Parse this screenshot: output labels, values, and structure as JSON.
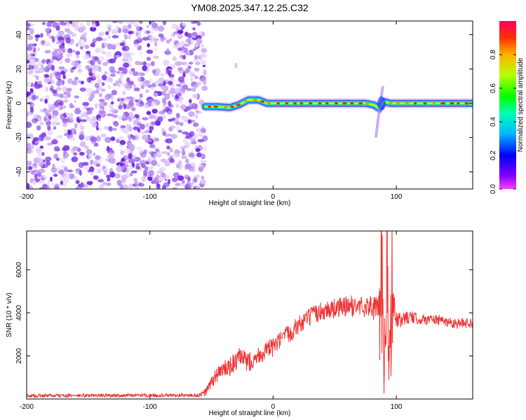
{
  "title": "YM08.2025.347.12.25.C32",
  "chart_data": [
    {
      "type": "heatmap",
      "title": "YM08.2025.347.12.25.C32",
      "xlabel": "Height of straight line (km)",
      "ylabel": "Frequency (Hz)",
      "xlim": [
        -200,
        162
      ],
      "ylim": [
        -50,
        48
      ],
      "xticks": [
        -200,
        -100,
        0,
        100
      ],
      "yticks": [
        -40,
        -20,
        0,
        20,
        40
      ],
      "noise_region_x": [
        -200,
        -55
      ],
      "signal_track": {
        "x": [
          -55,
          -45,
          -35,
          -28,
          -20,
          -12,
          -5,
          0,
          20,
          40,
          60,
          75,
          82,
          86,
          90,
          95,
          110,
          130,
          150,
          162
        ],
        "freq_hz": [
          -2,
          -2,
          -2.5,
          -1,
          2,
          2,
          0,
          0,
          0,
          0,
          0,
          0,
          -1,
          -3,
          1,
          0,
          0,
          0,
          0,
          0
        ]
      },
      "disturbance_x": 88,
      "colorbar": {
        "label": "Normalized spectral amplitude",
        "range": [
          0.0,
          1.0
        ],
        "ticks": [
          "0.0",
          "0.2",
          "0.4",
          "0.6",
          "0.8"
        ]
      }
    },
    {
      "type": "line",
      "xlabel": "Height of straight line (km)",
      "ylabel": "SNR (10 * v/v)",
      "xlim": [
        -200,
        162
      ],
      "ylim": [
        0,
        7800
      ],
      "xticks": [
        -200,
        -100,
        0,
        100
      ],
      "yticks": [
        2000,
        4000,
        6000
      ],
      "series": [
        {
          "name": "SNR",
          "color": "#ee3333",
          "x": [
            -200,
            -150,
            -100,
            -60,
            -55,
            -45,
            -35,
            -27,
            -20,
            -10,
            0,
            10,
            20,
            30,
            40,
            60,
            80,
            86,
            88,
            90,
            92,
            94,
            96,
            100,
            110,
            120,
            130,
            140,
            150,
            162
          ],
          "y": [
            150,
            160,
            170,
            170,
            300,
            1200,
            1500,
            1900,
            1700,
            2100,
            2400,
            2900,
            3400,
            3800,
            4100,
            4300,
            4300,
            4000,
            6500,
            900,
            7800,
            700,
            5000,
            3600,
            3800,
            3700,
            3700,
            3600,
            3500,
            3550
          ],
          "noise_amplitude": [
            80,
            80,
            80,
            80,
            200,
            400,
            450,
            500,
            450,
            450,
            450,
            450,
            450,
            450,
            450,
            500,
            500,
            800,
            800,
            800,
            800,
            800,
            800,
            400,
            300,
            250,
            250,
            250,
            250,
            250
          ]
        }
      ]
    }
  ]
}
